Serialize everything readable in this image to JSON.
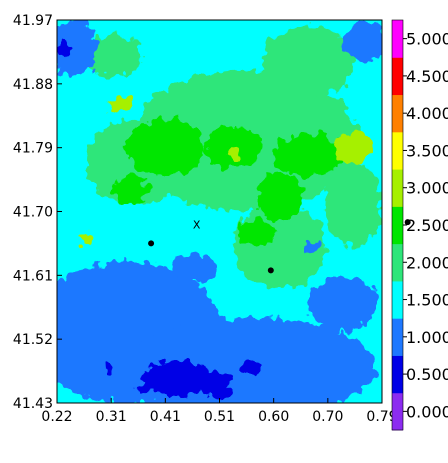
{
  "chart_data": {
    "type": "heatmap",
    "x_ticks": [
      "0.22",
      "0.31",
      "0.41",
      "0.51",
      "0.60",
      "0.70",
      "0.79"
    ],
    "y_ticks": [
      "41.97",
      "41.88",
      "41.79",
      "41.70",
      "41.61",
      "41.52",
      "41.43"
    ],
    "xlim": [
      0.22,
      0.79
    ],
    "ylim": [
      41.43,
      41.97
    ],
    "colorbar": {
      "labels": [
        "0.000",
        "0.500",
        "1.000",
        "1.500",
        "2.000",
        "2.500",
        "3.000",
        "3.500",
        "4.000",
        "4.500",
        "5.000"
      ],
      "levels": [
        {
          "min": 0.0,
          "max": 0.5,
          "color": "#8c2cf0"
        },
        {
          "min": 0.5,
          "max": 1.0,
          "color": "#0000e6"
        },
        {
          "min": 1.0,
          "max": 1.5,
          "color": "#1e78ff"
        },
        {
          "min": 1.5,
          "max": 2.0,
          "color": "#00ffff"
        },
        {
          "min": 2.0,
          "max": 2.5,
          "color": "#2ee67a"
        },
        {
          "min": 2.5,
          "max": 3.0,
          "color": "#00e600"
        },
        {
          "min": 3.0,
          "max": 3.5,
          "color": "#a6f000"
        },
        {
          "min": 3.5,
          "max": 4.0,
          "color": "#ffff00"
        },
        {
          "min": 4.0,
          "max": 4.5,
          "color": "#ff8000"
        },
        {
          "min": 4.5,
          "max": 5.0,
          "color": "#ff0000"
        },
        {
          "min": 5.0,
          "max": 5.5,
          "color": "#ff00ff"
        }
      ]
    },
    "regions": [
      {
        "level": 1.5,
        "center": [
          0.505,
          41.7
        ],
        "radii": [
          0.3,
          0.3
        ]
      },
      {
        "level": 2.0,
        "center": [
          0.55,
          41.8
        ],
        "radii": [
          0.2,
          0.1
        ]
      },
      {
        "level": 2.0,
        "center": [
          0.36,
          41.77
        ],
        "radii": [
          0.09,
          0.06
        ]
      },
      {
        "level": 2.0,
        "center": [
          0.61,
          41.65
        ],
        "radii": [
          0.08,
          0.06
        ]
      },
      {
        "level": 2.0,
        "center": [
          0.74,
          41.71
        ],
        "radii": [
          0.05,
          0.06
        ]
      },
      {
        "level": 2.0,
        "center": [
          0.66,
          41.91
        ],
        "radii": [
          0.08,
          0.05
        ]
      },
      {
        "level": 2.0,
        "center": [
          0.32,
          41.92
        ],
        "radii": [
          0.05,
          0.03
        ]
      },
      {
        "level": 2.5,
        "center": [
          0.41,
          41.79
        ],
        "radii": [
          0.07,
          0.04
        ]
      },
      {
        "level": 2.5,
        "center": [
          0.53,
          41.79
        ],
        "radii": [
          0.05,
          0.03
        ]
      },
      {
        "level": 2.5,
        "center": [
          0.61,
          41.72
        ],
        "radii": [
          0.04,
          0.035
        ]
      },
      {
        "level": 2.5,
        "center": [
          0.66,
          41.78
        ],
        "radii": [
          0.06,
          0.03
        ]
      },
      {
        "level": 2.5,
        "center": [
          0.57,
          41.67
        ],
        "radii": [
          0.03,
          0.02
        ]
      },
      {
        "level": 2.5,
        "center": [
          0.35,
          41.73
        ],
        "radii": [
          0.03,
          0.02
        ]
      },
      {
        "level": 3.0,
        "center": [
          0.33,
          41.85
        ],
        "radii": [
          0.02,
          0.012
        ]
      },
      {
        "level": 3.0,
        "center": [
          0.74,
          41.79
        ],
        "radii": [
          0.035,
          0.022
        ]
      },
      {
        "level": 3.0,
        "center": [
          0.27,
          41.66
        ],
        "radii": [
          0.012,
          0.01
        ]
      },
      {
        "level": 3.0,
        "center": [
          0.53,
          41.78
        ],
        "radii": [
          0.012,
          0.008
        ]
      },
      {
        "level": 1.0,
        "center": [
          0.34,
          41.53
        ],
        "radii": [
          0.17,
          0.1
        ]
      },
      {
        "level": 1.0,
        "center": [
          0.56,
          41.48
        ],
        "radii": [
          0.22,
          0.07
        ]
      },
      {
        "level": 1.0,
        "center": [
          0.72,
          41.57
        ],
        "radii": [
          0.06,
          0.04
        ]
      },
      {
        "level": 1.0,
        "center": [
          0.25,
          41.93
        ],
        "radii": [
          0.04,
          0.04
        ]
      },
      {
        "level": 1.0,
        "center": [
          0.76,
          41.94
        ],
        "radii": [
          0.04,
          0.03
        ]
      },
      {
        "level": 1.0,
        "center": [
          0.46,
          41.62
        ],
        "radii": [
          0.04,
          0.02
        ]
      },
      {
        "level": 1.0,
        "center": [
          0.67,
          41.65
        ],
        "radii": [
          0.015,
          0.01
        ]
      },
      {
        "level": 0.5,
        "center": [
          0.43,
          41.465
        ],
        "radii": [
          0.06,
          0.025
        ]
      },
      {
        "level": 0.5,
        "center": [
          0.5,
          41.455
        ],
        "radii": [
          0.025,
          0.02
        ]
      },
      {
        "level": 0.5,
        "center": [
          0.56,
          41.48
        ],
        "radii": [
          0.015,
          0.012
        ]
      },
      {
        "level": 0.5,
        "center": [
          0.23,
          41.93
        ],
        "radii": [
          0.01,
          0.012
        ]
      },
      {
        "level": 0.5,
        "center": [
          0.31,
          41.48
        ],
        "radii": [
          0.01,
          0.008
        ]
      },
      {
        "level": 0.5,
        "center": [
          0.37,
          41.45
        ],
        "radii": [
          0.01,
          0.008
        ]
      }
    ],
    "markers": [
      {
        "x": 0.385,
        "y": 41.655,
        "label": ""
      },
      {
        "x": 0.595,
        "y": 41.617,
        "label": ""
      },
      {
        "x": 0.465,
        "y": 41.682,
        "label": "X"
      }
    ],
    "outside_marker": {
      "x": 0.835,
      "y": 41.685
    }
  }
}
